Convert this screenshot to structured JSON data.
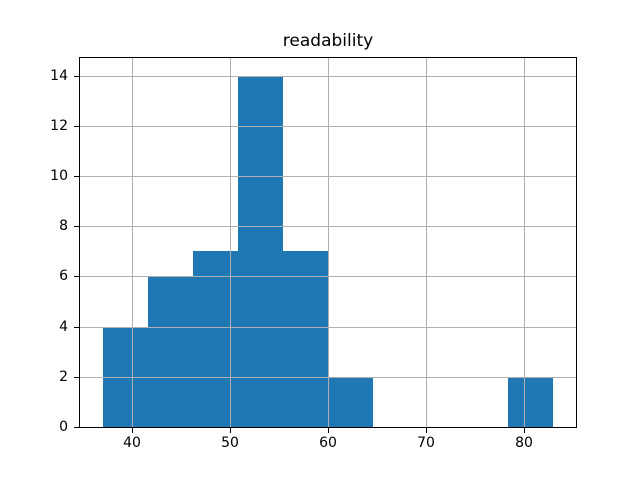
{
  "chart_data": {
    "type": "bar",
    "subtype": "histogram",
    "title": "readability",
    "xlabel": "",
    "ylabel": "",
    "bin_edges": [
      37.0,
      41.6,
      46.2,
      50.8,
      55.4,
      60.0,
      64.6,
      69.2,
      73.8,
      78.4,
      83.0
    ],
    "counts": [
      4,
      6,
      7,
      14,
      7,
      2,
      0,
      0,
      0,
      2
    ],
    "xlim": [
      34.7,
      85.3
    ],
    "ylim": [
      0,
      14.7
    ],
    "xticks": [
      40,
      50,
      60,
      70,
      80
    ],
    "yticks": [
      0,
      2,
      4,
      6,
      8,
      10,
      12,
      14
    ],
    "grid": true,
    "grid_above_bars": true,
    "legend": null,
    "colors": {
      "bar": "#1f77b4",
      "grid": "#b0b0b0",
      "spine": "#000000",
      "text": "#000000",
      "background": "#ffffff"
    }
  }
}
